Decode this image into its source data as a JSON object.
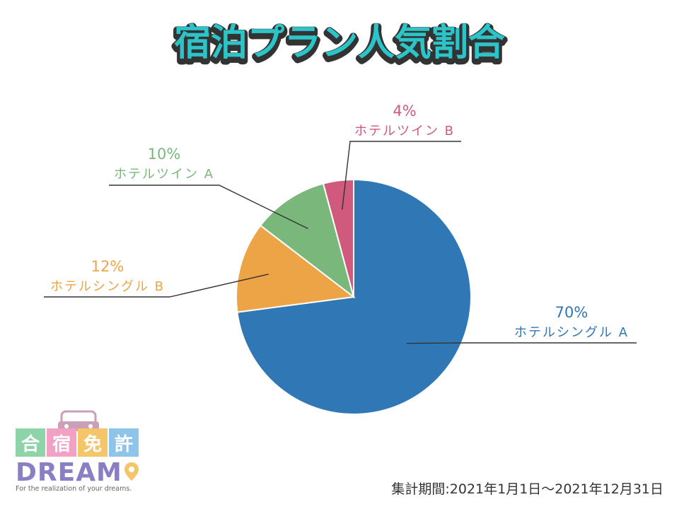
{
  "chart_data": {
    "type": "pie",
    "title": "宿泊プラン人気割合",
    "slices": [
      {
        "name": "ホテルシングル A",
        "value": 70,
        "label": "70%",
        "color": "#2f77b5"
      },
      {
        "name": "ホテルシングル B",
        "value": 12,
        "label": "12%",
        "color": "#eda447"
      },
      {
        "name": "ホテルツイン A",
        "value": 10,
        "label": "10%",
        "color": "#79b77b"
      },
      {
        "name": "ホテルツイン B",
        "value": 4,
        "label": "4%",
        "color": "#d05a7d"
      }
    ],
    "start": "12 o'clock",
    "direction": "clockwise",
    "label_color": "#333333",
    "title_color": "#2bc4c8",
    "title_outline": "#333333"
  },
  "footer": {
    "period": "集計期間:2021年1月1日～2021年12月31日"
  },
  "logo": {
    "kanji": [
      "合",
      "宿",
      "免",
      "許"
    ],
    "kanji_colors": [
      "#8fd4a8",
      "#f2a0c4",
      "#f5c56a",
      "#8fc4ea"
    ],
    "word": "DREAM",
    "tagline": "For the realization of your dreams."
  }
}
